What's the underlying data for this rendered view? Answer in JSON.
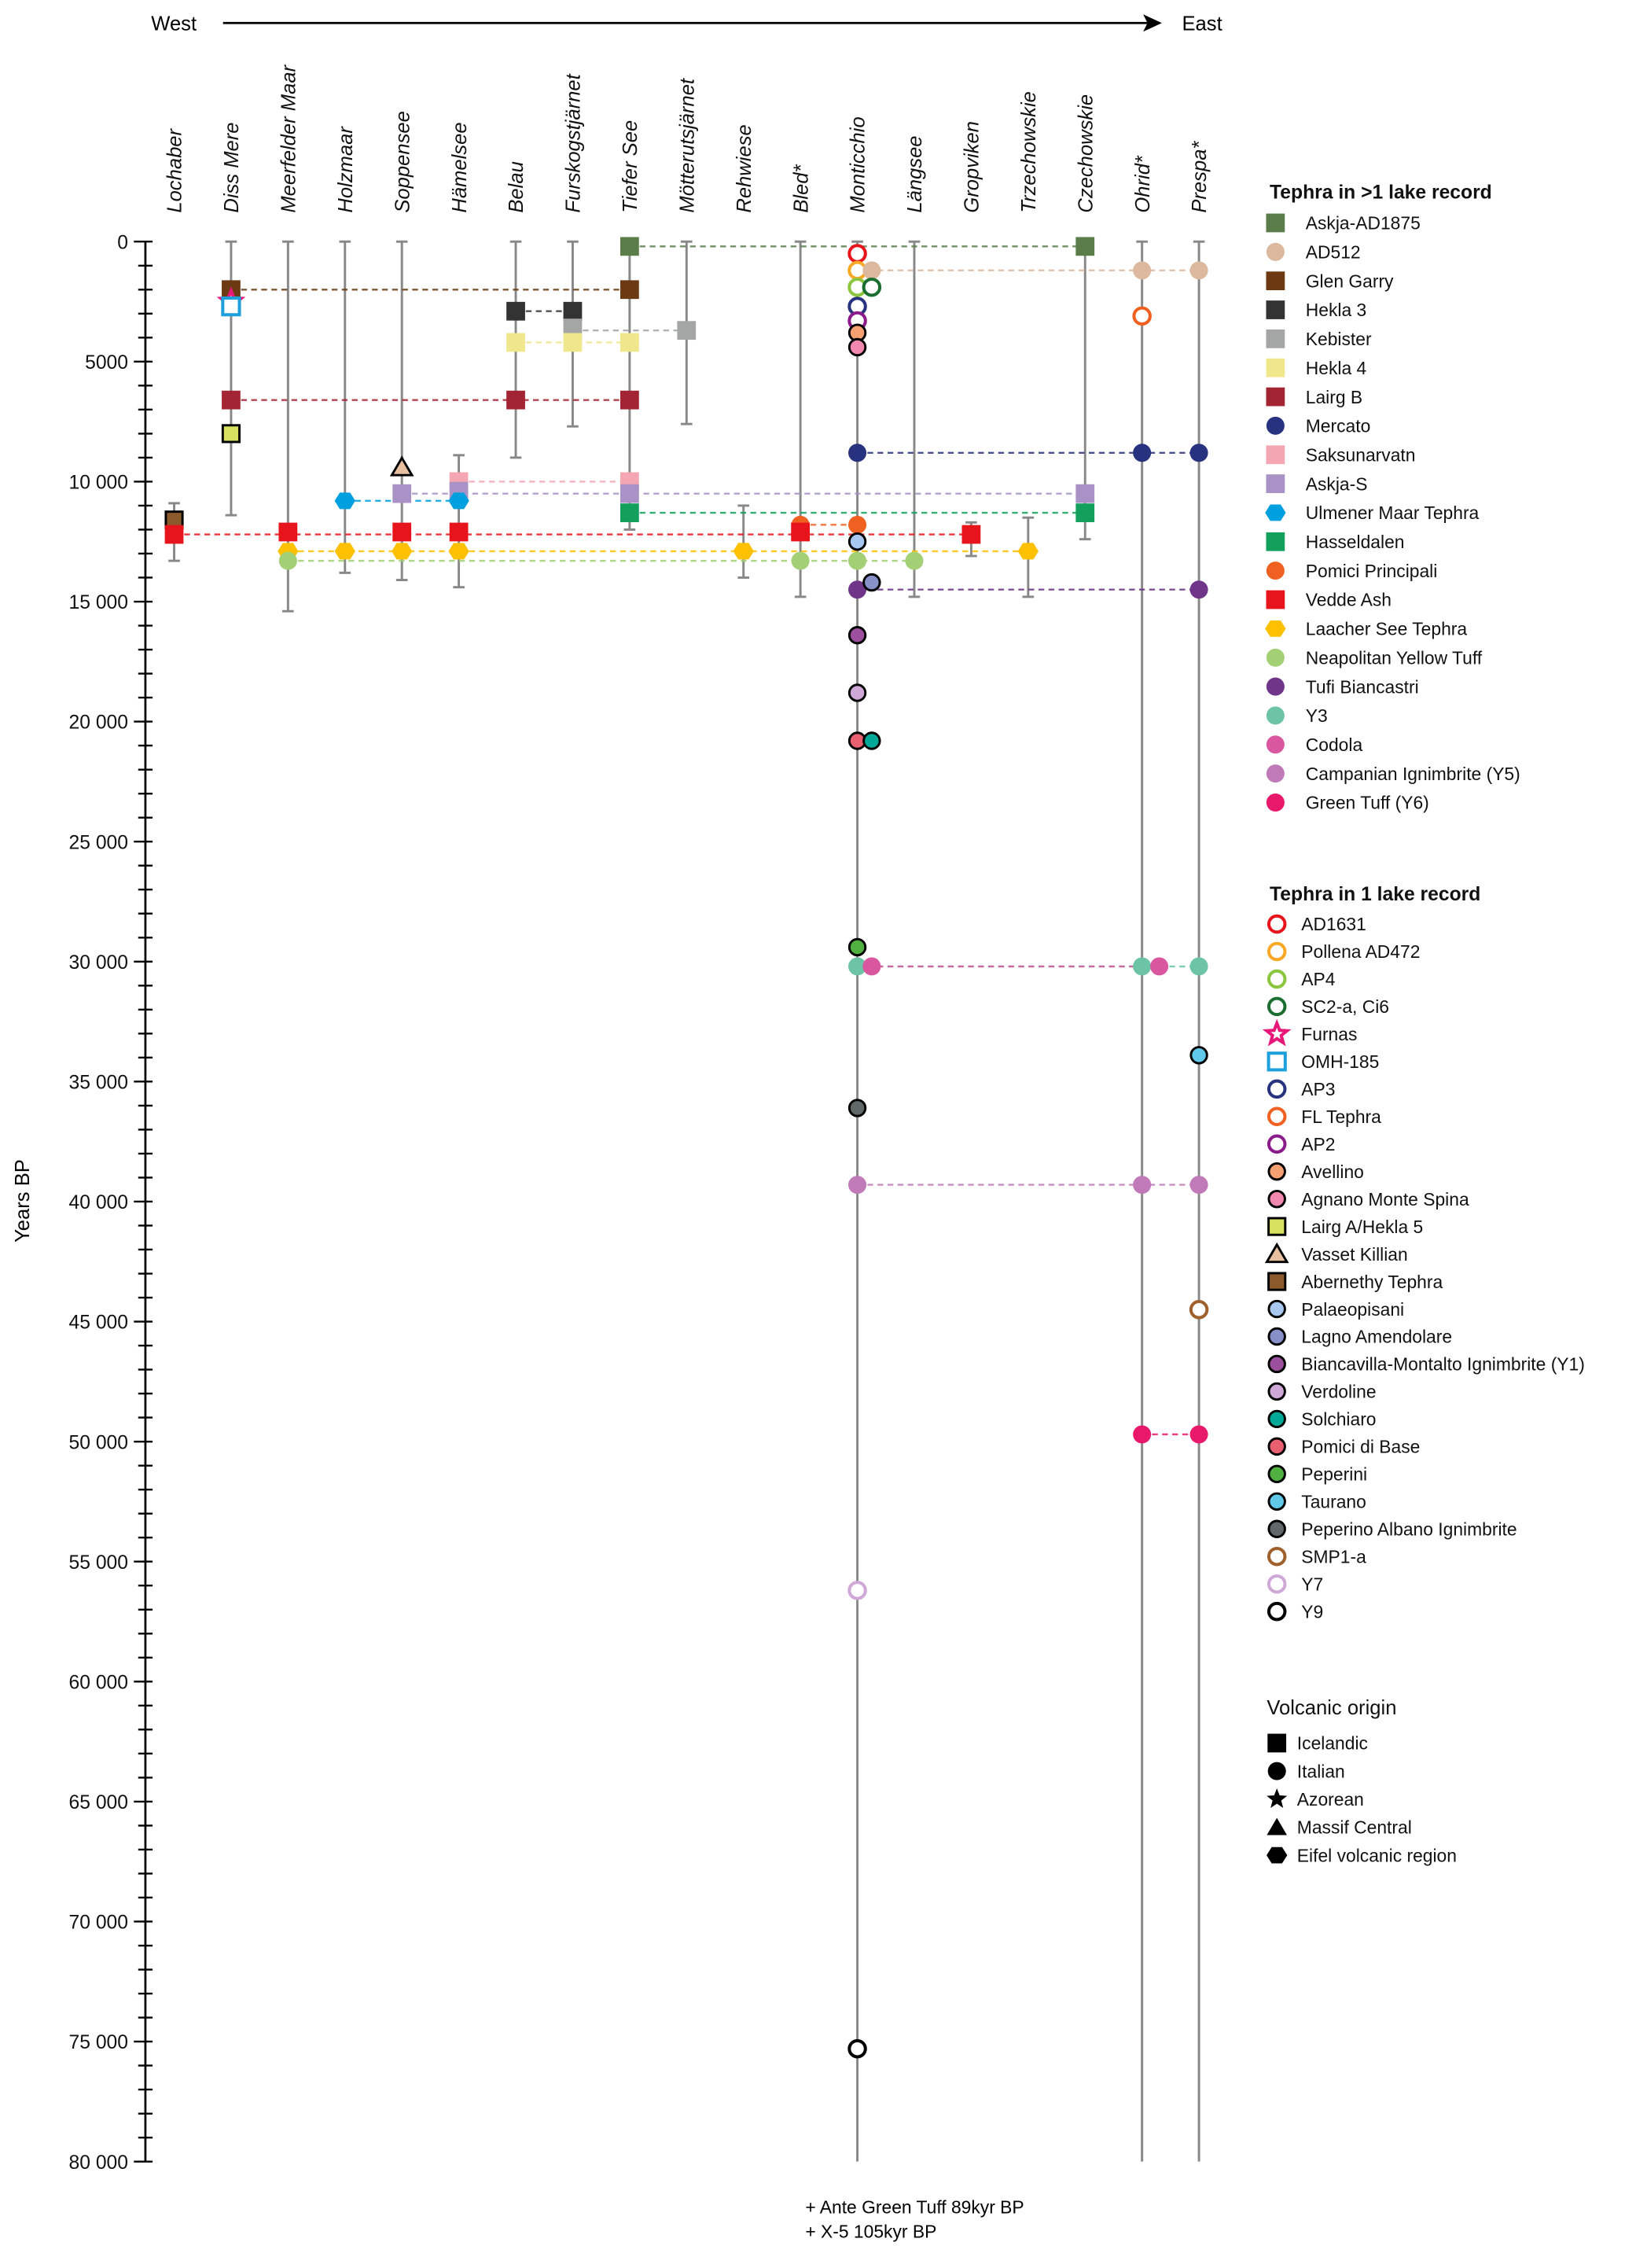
{
  "chart_data": {
    "type": "scatter",
    "direction": {
      "west_label": "West",
      "east_label": "East"
    },
    "ylabel": "Years BP",
    "ylim": [
      0,
      80000
    ],
    "y_major_step": 5000,
    "y_minor_step": 1000,
    "lakes": [
      {
        "name": "Lochaber",
        "range": [
          10900,
          13300
        ]
      },
      {
        "name": "Diss Mere",
        "range": [
          0,
          11400
        ]
      },
      {
        "name": "Meerfelder Maar",
        "range": [
          0,
          15400
        ]
      },
      {
        "name": "Holzmaar",
        "range": [
          0,
          13800
        ]
      },
      {
        "name": "Soppensee",
        "range": [
          0,
          14100
        ]
      },
      {
        "name": "Hämelsee",
        "range": [
          8900,
          14400
        ]
      },
      {
        "name": "Belau",
        "range": [
          0,
          9000
        ]
      },
      {
        "name": "Furskogstjärnet",
        "range": [
          0,
          7700
        ]
      },
      {
        "name": "Tiefer See",
        "range": [
          0,
          12000
        ]
      },
      {
        "name": "Mötterutsjärnet",
        "range": [
          0,
          7600
        ]
      },
      {
        "name": "Rehwiese",
        "range": [
          11000,
          14000
        ]
      },
      {
        "name": "Bled*",
        "range": [
          0,
          14800
        ]
      },
      {
        "name": "Monticchio",
        "range": [
          0,
          80000
        ]
      },
      {
        "name": "Längsee",
        "range": [
          0,
          14800
        ]
      },
      {
        "name": "Gropviken",
        "range": [
          11700,
          13100
        ]
      },
      {
        "name": "Trzechowskie",
        "range": [
          11500,
          14800
        ]
      },
      {
        "name": "Czechowskie",
        "range": [
          0,
          12400
        ]
      },
      {
        "name": "Ohrid*",
        "range": [
          0,
          80000
        ]
      },
      {
        "name": "Prespa*",
        "range": [
          0,
          80000
        ]
      }
    ],
    "legend_multi_title": "Tephra in >1 lake record",
    "tephra_multi": [
      {
        "name": "Askja-AD1875",
        "color": "#5a7d4a",
        "shape": "square"
      },
      {
        "name": "AD512",
        "color": "#dcb99e",
        "shape": "circle"
      },
      {
        "name": "Glen Garry",
        "color": "#6b3a12",
        "shape": "square"
      },
      {
        "name": "Hekla 3",
        "color": "#333333",
        "shape": "square"
      },
      {
        "name": "Kebister",
        "color": "#a4a6a5",
        "shape": "square"
      },
      {
        "name": "Hekla 4",
        "color": "#f0e68c",
        "shape": "square"
      },
      {
        "name": "Lairg B",
        "color": "#a32433",
        "shape": "square"
      },
      {
        "name": "Mercato",
        "color": "#27337f",
        "shape": "circle"
      },
      {
        "name": "Saksunarvatn",
        "color": "#f4a7b3",
        "shape": "square"
      },
      {
        "name": "Askja-S",
        "color": "#a993c6",
        "shape": "square"
      },
      {
        "name": "Ulmener Maar Tephra",
        "color": "#00a0e0",
        "shape": "hex"
      },
      {
        "name": "Hasseldalen",
        "color": "#12a05c",
        "shape": "square"
      },
      {
        "name": "Pomici Principali",
        "color": "#f06020",
        "shape": "circle"
      },
      {
        "name": "Vedde Ash",
        "color": "#e8141c",
        "shape": "square"
      },
      {
        "name": "Laacher See Tephra",
        "color": "#ffc000",
        "shape": "hex"
      },
      {
        "name": "Neapolitan Yellow Tuff",
        "color": "#a3cf75",
        "shape": "circle"
      },
      {
        "name": "Tufi Biancastri",
        "color": "#6e3589",
        "shape": "circle"
      },
      {
        "name": "Y3",
        "color": "#6cc3a6",
        "shape": "circle"
      },
      {
        "name": "Codola",
        "color": "#d9579f",
        "shape": "circle"
      },
      {
        "name": "Campanian Ignimbrite (Y5)",
        "color": "#c07ab8",
        "shape": "circle"
      },
      {
        "name": "Green Tuff (Y6)",
        "color": "#e8186b",
        "shape": "circle"
      }
    ],
    "legend_single_title": "Tephra in 1 lake record",
    "tephra_single": [
      {
        "name": "AD1631",
        "color": "#e8141c",
        "shape": "circle",
        "style": "open"
      },
      {
        "name": "Pollena AD472",
        "color": "#f9a825",
        "shape": "circle",
        "style": "open"
      },
      {
        "name": "AP4",
        "color": "#8cc63f",
        "shape": "circle",
        "style": "open"
      },
      {
        "name": "SC2-a, Ci6",
        "color": "#1a6e30",
        "shape": "circle",
        "style": "open"
      },
      {
        "name": "Furnas",
        "color": "#e8187a",
        "shape": "star",
        "style": "open"
      },
      {
        "name": "OMH-185",
        "color": "#1ea0dc",
        "shape": "square",
        "style": "open"
      },
      {
        "name": "AP3",
        "color": "#27337f",
        "shape": "circle",
        "style": "open"
      },
      {
        "name": "FL Tephra",
        "color": "#f06020",
        "shape": "circle",
        "style": "open"
      },
      {
        "name": "AP2",
        "color": "#8b1a8b",
        "shape": "circle",
        "style": "open"
      },
      {
        "name": "Avellino",
        "color": "#f4a070",
        "shape": "circle",
        "style": "outlined"
      },
      {
        "name": "Agnano Monte Spina",
        "color": "#f088b0",
        "shape": "circle",
        "style": "outlined"
      },
      {
        "name": "Lairg A/Hekla 5",
        "color": "#d8e060",
        "shape": "square",
        "style": "outlined"
      },
      {
        "name": "Vasset Killian",
        "color": "#e8c0a0",
        "shape": "triangle",
        "style": "outlined"
      },
      {
        "name": "Abernethy Tephra",
        "color": "#8b5a2b",
        "shape": "square",
        "style": "outlined"
      },
      {
        "name": "Palaeopisani",
        "color": "#a8c8f0",
        "shape": "circle",
        "style": "outlined"
      },
      {
        "name": "Lagno Amendolare",
        "color": "#8890c8",
        "shape": "circle",
        "style": "outlined"
      },
      {
        "name": "Biancavilla-Montalto Ignimbrite (Y1)",
        "color": "#9c4f9c",
        "shape": "circle",
        "style": "outlined"
      },
      {
        "name": "Verdoline",
        "color": "#d0a8d8",
        "shape": "circle",
        "style": "outlined"
      },
      {
        "name": "Solchiaro",
        "color": "#00a898",
        "shape": "circle",
        "style": "outlined"
      },
      {
        "name": "Pomici di Base",
        "color": "#e86070",
        "shape": "circle",
        "style": "outlined"
      },
      {
        "name": "Peperini",
        "color": "#50b040",
        "shape": "circle",
        "style": "outlined"
      },
      {
        "name": "Taurano",
        "color": "#60c8e8",
        "shape": "circle",
        "style": "outlined"
      },
      {
        "name": "Peperino Albano Ignimbrite",
        "color": "#606868",
        "shape": "circle",
        "style": "outlined"
      },
      {
        "name": "SMP1-a",
        "color": "#a0602c",
        "shape": "circle",
        "style": "open"
      },
      {
        "name": "Y7",
        "color": "#d0a8d8",
        "shape": "circle",
        "style": "open"
      },
      {
        "name": "Y9",
        "color": "#000000",
        "shape": "circle",
        "style": "open"
      }
    ],
    "legend_origin_title": "Volcanic origin",
    "origins": [
      {
        "name": "Icelandic",
        "shape": "square"
      },
      {
        "name": "Italian",
        "shape": "circle"
      },
      {
        "name": "Azorean",
        "shape": "star"
      },
      {
        "name": "Massif Central",
        "shape": "triangle"
      },
      {
        "name": "Eifel volcanic region",
        "shape": "hex"
      }
    ],
    "occurrences": [
      [
        "Diss Mere",
        "Glen Garry",
        2000
      ],
      [
        "Diss Mere",
        "Furnas",
        2500
      ],
      [
        "Diss Mere",
        "OMH-185",
        2700
      ],
      [
        "Diss Mere",
        "Lairg B",
        6600
      ],
      [
        "Diss Mere",
        "Lairg A/Hekla 5",
        8000
      ],
      [
        "Tiefer See",
        "Askja-AD1875",
        200
      ],
      [
        "Tiefer See",
        "Glen Garry",
        2000
      ],
      [
        "Tiefer See",
        "Hekla 4",
        4200
      ],
      [
        "Tiefer See",
        "Lairg B",
        6600
      ],
      [
        "Tiefer See",
        "Saksunarvatn",
        10000
      ],
      [
        "Tiefer See",
        "Askja-S",
        10500
      ],
      [
        "Tiefer See",
        "Hasseldalen",
        11300
      ],
      [
        "Belau",
        "Hekla 3",
        2900
      ],
      [
        "Belau",
        "Hekla 4",
        4200
      ],
      [
        "Belau",
        "Lairg B",
        6600
      ],
      [
        "Furskogstjärnet",
        "Hekla 3",
        2900
      ],
      [
        "Furskogstjärnet",
        "Kebister",
        3600
      ],
      [
        "Furskogstjärnet",
        "Hekla 4",
        4200
      ],
      [
        "Mötterutsjärnet",
        "Kebister",
        3700
      ],
      [
        "Lochaber",
        "Abernethy Tephra",
        11600
      ],
      [
        "Lochaber",
        "Vedde Ash",
        12200
      ],
      [
        "Meerfelder Maar",
        "Vedde Ash",
        12100
      ],
      [
        "Meerfelder Maar",
        "Laacher See Tephra",
        12900
      ],
      [
        "Meerfelder Maar",
        "Neapolitan Yellow Tuff",
        13300
      ],
      [
        "Holzmaar",
        "Ulmener Maar Tephra",
        10800
      ],
      [
        "Holzmaar",
        "Laacher See Tephra",
        12900
      ],
      [
        "Soppensee",
        "Vasset Killian",
        9400
      ],
      [
        "Soppensee",
        "Askja-S",
        10500
      ],
      [
        "Soppensee",
        "Vedde Ash",
        12100
      ],
      [
        "Soppensee",
        "Laacher See Tephra",
        12900
      ],
      [
        "Hämelsee",
        "Saksunarvatn",
        10000
      ],
      [
        "Hämelsee",
        "Askja-S",
        10400
      ],
      [
        "Hämelsee",
        "Ulmener Maar Tephra",
        10800
      ],
      [
        "Hämelsee",
        "Vedde Ash",
        12100
      ],
      [
        "Hämelsee",
        "Laacher See Tephra",
        12900
      ],
      [
        "Rehwiese",
        "Laacher See Tephra",
        12900
      ],
      [
        "Bled*",
        "Pomici Principali",
        11800
      ],
      [
        "Bled*",
        "Vedde Ash",
        12100
      ],
      [
        "Bled*",
        "Neapolitan Yellow Tuff",
        13300
      ],
      [
        "Monticchio",
        "AD1631",
        500
      ],
      [
        "Monticchio",
        "Pollena AD472",
        1200
      ],
      [
        "Monticchio",
        "AD512",
        1200
      ],
      [
        "Monticchio",
        "AP4",
        1900
      ],
      [
        "Monticchio",
        "SC2-a, Ci6",
        1900
      ],
      [
        "Monticchio",
        "AP3",
        2700
      ],
      [
        "Monticchio",
        "AP2",
        3300
      ],
      [
        "Monticchio",
        "Avellino",
        3800
      ],
      [
        "Monticchio",
        "Agnano Monte Spina",
        4400
      ],
      [
        "Monticchio",
        "Mercato",
        8800
      ],
      [
        "Monticchio",
        "Pomici Principali",
        11800
      ],
      [
        "Monticchio",
        "Palaeopisani",
        12500
      ],
      [
        "Monticchio",
        "Neapolitan Yellow Tuff",
        13300
      ],
      [
        "Monticchio",
        "Tufi Biancastri",
        14500
      ],
      [
        "Monticchio",
        "Lagno Amendolare",
        14200
      ],
      [
        "Monticchio",
        "Biancavilla-Montalto Ignimbrite (Y1)",
        16400
      ],
      [
        "Monticchio",
        "Verdoline",
        18800
      ],
      [
        "Monticchio",
        "Pomici di Base",
        20800
      ],
      [
        "Monticchio",
        "Solchiaro",
        20800
      ],
      [
        "Monticchio",
        "Peperini",
        29400
      ],
      [
        "Monticchio",
        "Y3",
        30200
      ],
      [
        "Monticchio",
        "Codola",
        30200
      ],
      [
        "Monticchio",
        "Peperino Albano Ignimbrite",
        36100
      ],
      [
        "Monticchio",
        "Campanian Ignimbrite (Y5)",
        39300
      ],
      [
        "Monticchio",
        "Y7",
        56200
      ],
      [
        "Monticchio",
        "Y9",
        75300
      ],
      [
        "Längsee",
        "Neapolitan Yellow Tuff",
        13300
      ],
      [
        "Gropviken",
        "Vedde Ash",
        12200
      ],
      [
        "Trzechowskie",
        "Laacher See Tephra",
        12900
      ],
      [
        "Czechowskie",
        "Askja-AD1875",
        200
      ],
      [
        "Czechowskie",
        "Askja-S",
        10500
      ],
      [
        "Czechowskie",
        "Hasseldalen",
        11300
      ],
      [
        "Ohrid*",
        "AD512",
        1200
      ],
      [
        "Ohrid*",
        "FL Tephra",
        3100
      ],
      [
        "Ohrid*",
        "Mercato",
        8800
      ],
      [
        "Ohrid*",
        "Y3",
        30200
      ],
      [
        "Ohrid*",
        "Codola",
        30200
      ],
      [
        "Ohrid*",
        "Campanian Ignimbrite (Y5)",
        39300
      ],
      [
        "Ohrid*",
        "Green Tuff (Y6)",
        49700
      ],
      [
        "Prespa*",
        "AD512",
        1200
      ],
      [
        "Prespa*",
        "Mercato",
        8800
      ],
      [
        "Prespa*",
        "Tufi Biancastri",
        14500
      ],
      [
        "Prespa*",
        "Y3",
        30200
      ],
      [
        "Prespa*",
        "Taurano",
        33900
      ],
      [
        "Prespa*",
        "Campanian Ignimbrite (Y5)",
        39300
      ],
      [
        "Prespa*",
        "SMP1-a",
        44500
      ],
      [
        "Prespa*",
        "Green Tuff (Y6)",
        49700
      ]
    ],
    "correlations": [
      [
        "Askja-AD1875",
        200,
        "Tiefer See",
        "Czechowskie"
      ],
      [
        "AD512",
        1200,
        "Monticchio",
        "Prespa*"
      ],
      [
        "Glen Garry",
        2000,
        "Diss Mere",
        "Tiefer See"
      ],
      [
        "Hekla 3",
        2900,
        "Belau",
        "Furskogstjärnet"
      ],
      [
        "Kebister",
        3700,
        "Furskogstjärnet",
        "Mötterutsjärnet"
      ],
      [
        "Hekla 4",
        4200,
        "Belau",
        "Tiefer See"
      ],
      [
        "Lairg B",
        6600,
        "Diss Mere",
        "Tiefer See"
      ],
      [
        "Mercato",
        8800,
        "Monticchio",
        "Prespa*"
      ],
      [
        "Saksunarvatn",
        10000,
        "Hämelsee",
        "Tiefer See"
      ],
      [
        "Askja-S",
        10500,
        "Soppensee",
        "Czechowskie"
      ],
      [
        "Ulmener Maar Tephra",
        10800,
        "Holzmaar",
        "Hämelsee"
      ],
      [
        "Hasseldalen",
        11300,
        "Tiefer See",
        "Czechowskie"
      ],
      [
        "Pomici Principali",
        11800,
        "Bled*",
        "Monticchio"
      ],
      [
        "Vedde Ash",
        12200,
        "Lochaber",
        "Gropviken"
      ],
      [
        "Laacher See Tephra",
        12900,
        "Meerfelder Maar",
        "Trzechowskie"
      ],
      [
        "Neapolitan Yellow Tuff",
        13300,
        "Meerfelder Maar",
        "Längsee"
      ],
      [
        "Tufi Biancastri",
        14500,
        "Monticchio",
        "Prespa*"
      ],
      [
        "Y3",
        30200,
        "Monticchio",
        "Prespa*"
      ],
      [
        "Codola",
        30200,
        "Monticchio",
        "Ohrid*"
      ],
      [
        "Campanian Ignimbrite (Y5)",
        39300,
        "Monticchio",
        "Prespa*"
      ],
      [
        "Green Tuff (Y6)",
        49700,
        "Ohrid*",
        "Prespa*"
      ]
    ],
    "footnotes": [
      "+ Ante Green Tuff 89kyr BP",
      "+ X-5 105kyr BP"
    ]
  }
}
